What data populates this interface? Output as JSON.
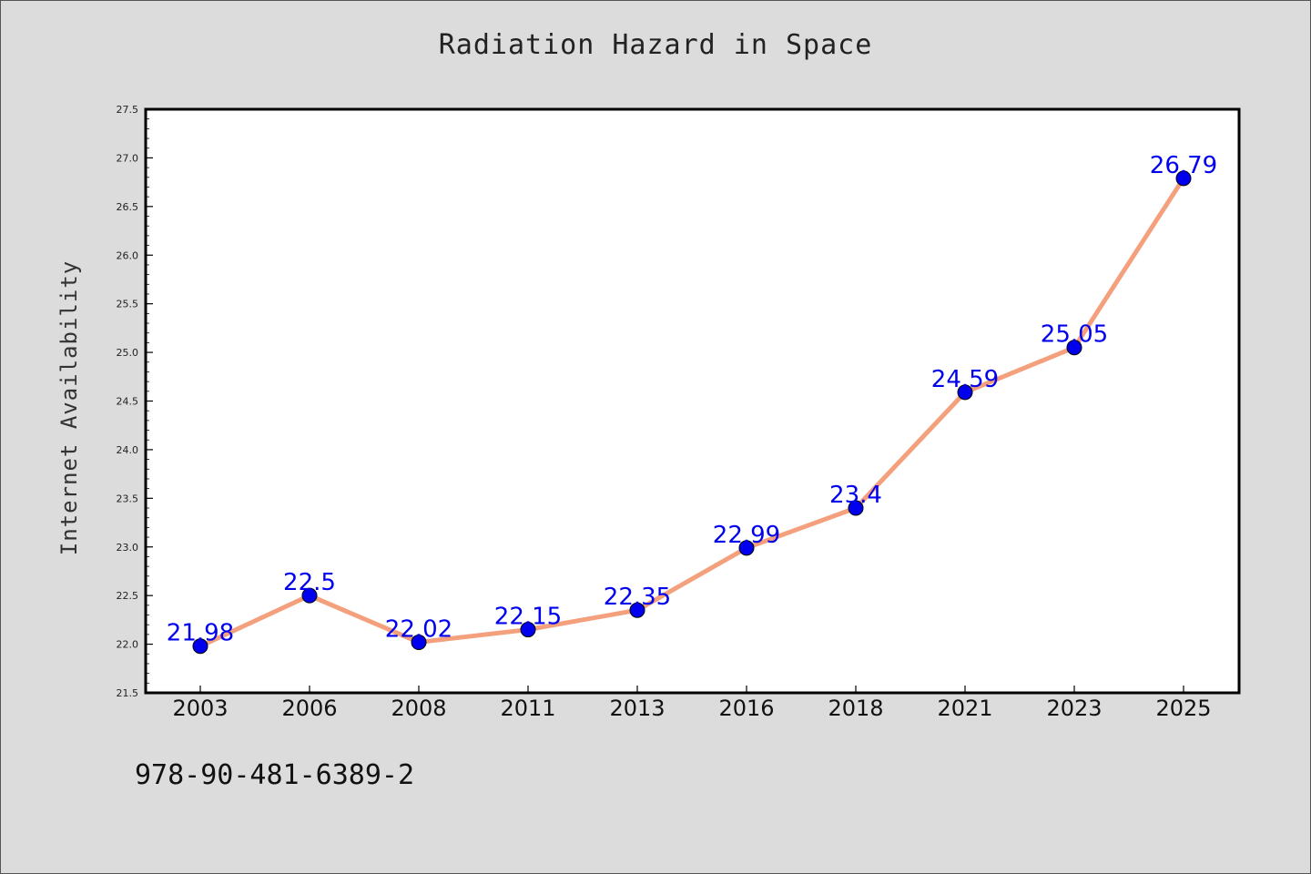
{
  "chart_data": {
    "type": "line",
    "title": "Radiation Hazard in Space",
    "xlabel": "",
    "ylabel": "Internet Availability",
    "categories": [
      "2003",
      "2006",
      "2008",
      "2011",
      "2013",
      "2016",
      "2018",
      "2021",
      "2023",
      "2025"
    ],
    "series": [
      {
        "values": [
          21.98,
          22.5,
          22.02,
          22.15,
          22.35,
          22.99,
          23.4,
          24.59,
          25.05,
          26.79
        ],
        "labels": [
          "21.98",
          "22.5",
          "22.02",
          "22.15",
          "22.35",
          "22.99",
          "23.4",
          "24.59",
          "25.05",
          "26.79"
        ]
      }
    ],
    "ylim": [
      21.5,
      27.5
    ],
    "yticks": [
      "21.5",
      "22.0",
      "22.5",
      "23.0",
      "23.5",
      "24.0",
      "24.5",
      "25.0",
      "25.5",
      "26.0",
      "26.5",
      "27.0",
      "27.5"
    ],
    "grid": false,
    "line_color": "#f4a07c",
    "marker_color": "#0000ee",
    "label_color": "#0000ee",
    "background_color": "#dcdcdc",
    "plot_background": "#ffffff"
  },
  "footer": {
    "text": "978-90-481-6389-2"
  }
}
